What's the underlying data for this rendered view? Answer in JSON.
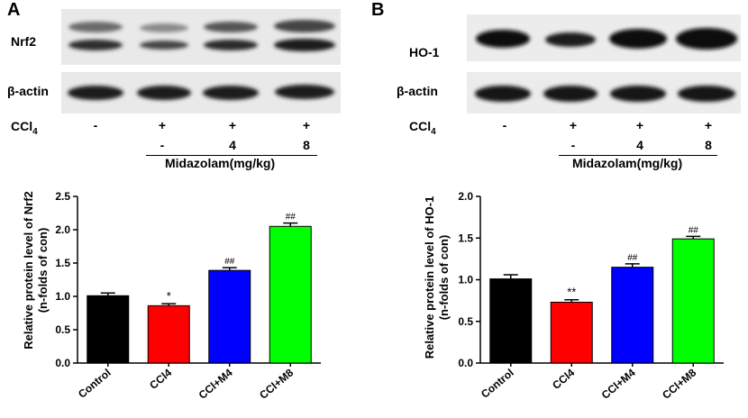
{
  "panels": [
    {
      "letter": "A",
      "blot_labels": [
        "Nrf2",
        "β-actin"
      ],
      "row_label_main": "CCl",
      "row_label_sub": "4",
      "ccl4_signs": [
        "-",
        "+",
        "+",
        "+"
      ],
      "midazolam_doses": [
        "",
        "-",
        "4",
        "8"
      ],
      "midazolam_label": "Midazolam(mg/kg)"
    },
    {
      "letter": "B",
      "blot_labels": [
        "HO-1",
        "β-actin"
      ],
      "row_label_main": "CCl",
      "row_label_sub": "4",
      "ccl4_signs": [
        "-",
        "+",
        "+",
        "+"
      ],
      "midazolam_doses": [
        "",
        "-",
        "4",
        "8"
      ],
      "midazolam_label": "Midazolam(mg/kg)"
    }
  ],
  "chart_data": [
    {
      "type": "bar",
      "ylabel_line1": "Relative protein level of Nrf2",
      "ylabel_line2": "(n-folds of con)",
      "categories": [
        "Control",
        "CCl4",
        "CCl+M4",
        "CCl+M8"
      ],
      "values": [
        1.01,
        0.86,
        1.39,
        2.05
      ],
      "errors": [
        0.04,
        0.03,
        0.04,
        0.05
      ],
      "significance": [
        "",
        "*",
        "##",
        "##"
      ],
      "colors": [
        "#000000",
        "#ff0000",
        "#0000ff",
        "#00ff00"
      ],
      "ylim": [
        0,
        2.5
      ],
      "yticks": [
        "0.0",
        "0.5",
        "1.0",
        "1.5",
        "2.0",
        "2.5"
      ]
    },
    {
      "type": "bar",
      "ylabel_line1": "Relative protein level of HO-1",
      "ylabel_line2": "(n-folds of con)",
      "categories": [
        "Control",
        "CCl4",
        "CCl+M4",
        "CCl+M8"
      ],
      "values": [
        1.01,
        0.73,
        1.15,
        1.49
      ],
      "errors": [
        0.05,
        0.03,
        0.04,
        0.03
      ],
      "significance": [
        "",
        "**",
        "##",
        "##"
      ],
      "colors": [
        "#000000",
        "#ff0000",
        "#0000ff",
        "#00ff00"
      ],
      "ylim": [
        0,
        2.0
      ],
      "yticks": [
        "0.0",
        "0.5",
        "1.0",
        "1.5",
        "2.0"
      ]
    }
  ]
}
